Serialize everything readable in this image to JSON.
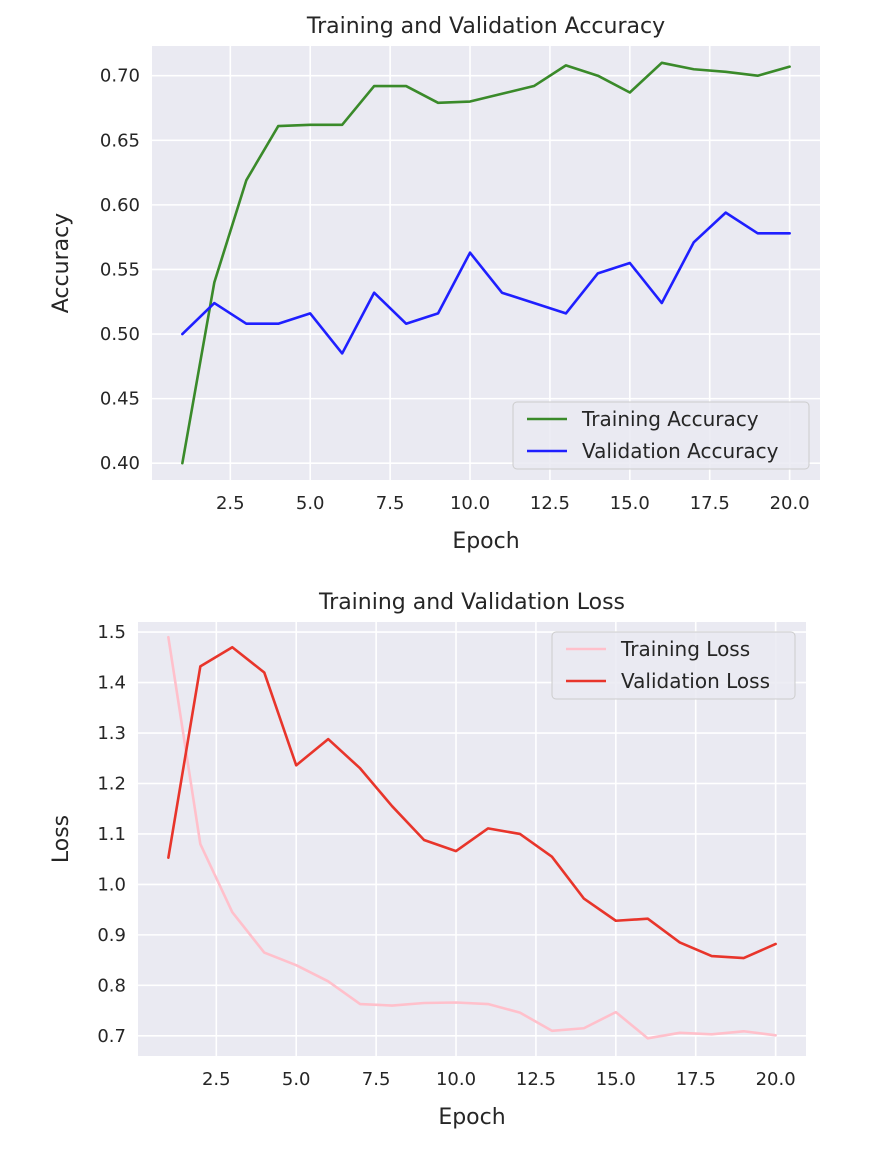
{
  "chart_data": [
    {
      "type": "line",
      "title": "Training and Validation Accuracy",
      "xlabel": "Epoch",
      "ylabel": "Accuracy",
      "xlim": [
        0.05,
        20.95
      ],
      "ylim": [
        0.387,
        0.723
      ],
      "xticks": [
        2.5,
        5.0,
        7.5,
        10.0,
        12.5,
        15.0,
        17.5,
        20.0
      ],
      "yticks": [
        0.4,
        0.45,
        0.5,
        0.55,
        0.6,
        0.65,
        0.7
      ],
      "xtick_labels": [
        "2.5",
        "5.0",
        "7.5",
        "10.0",
        "12.5",
        "15.0",
        "17.5",
        "20.0"
      ],
      "ytick_labels": [
        "0.40",
        "0.45",
        "0.50",
        "0.55",
        "0.60",
        "0.65",
        "0.70"
      ],
      "grid": true,
      "legend_position": "lower-right",
      "x": [
        1,
        2,
        3,
        4,
        5,
        6,
        7,
        8,
        9,
        10,
        11,
        12,
        13,
        14,
        15,
        16,
        17,
        18,
        19,
        20
      ],
      "series": [
        {
          "name": "Training Accuracy",
          "color": "#3a8a2a",
          "values": [
            0.4,
            0.54,
            0.619,
            0.661,
            0.662,
            0.662,
            0.692,
            0.692,
            0.679,
            0.68,
            0.686,
            0.692,
            0.708,
            0.7,
            0.687,
            0.71,
            0.705,
            0.703,
            0.7,
            0.707
          ]
        },
        {
          "name": "Validation Accuracy",
          "color": "#1f1fff",
          "values": [
            0.5,
            0.524,
            0.508,
            0.508,
            0.516,
            0.485,
            0.532,
            0.508,
            0.516,
            0.563,
            0.532,
            0.524,
            0.516,
            0.547,
            0.555,
            0.524,
            0.571,
            0.594,
            0.578,
            0.578
          ]
        }
      ]
    },
    {
      "type": "line",
      "title": "Training and Validation Loss",
      "xlabel": "Epoch",
      "ylabel": "Loss",
      "xlim": [
        0.05,
        20.95
      ],
      "ylim": [
        0.66,
        1.52
      ],
      "xticks": [
        2.5,
        5.0,
        7.5,
        10.0,
        12.5,
        15.0,
        17.5,
        20.0
      ],
      "yticks": [
        0.7,
        0.8,
        0.9,
        1.0,
        1.1,
        1.2,
        1.3,
        1.4,
        1.5
      ],
      "xtick_labels": [
        "2.5",
        "5.0",
        "7.5",
        "10.0",
        "12.5",
        "15.0",
        "17.5",
        "20.0"
      ],
      "ytick_labels": [
        "0.7",
        "0.8",
        "0.9",
        "1.0",
        "1.1",
        "1.2",
        "1.3",
        "1.4",
        "1.5"
      ],
      "grid": true,
      "legend_position": "upper-right",
      "x": [
        1,
        2,
        3,
        4,
        5,
        6,
        7,
        8,
        9,
        10,
        11,
        12,
        13,
        14,
        15,
        16,
        17,
        18,
        19,
        20
      ],
      "series": [
        {
          "name": "Training Loss",
          "color": "#ffc0cb",
          "values": [
            1.49,
            1.08,
            0.945,
            0.865,
            0.84,
            0.808,
            0.763,
            0.76,
            0.765,
            0.766,
            0.763,
            0.746,
            0.71,
            0.715,
            0.747,
            0.695,
            0.706,
            0.703,
            0.709,
            0.701
          ]
        },
        {
          "name": "Validation Loss",
          "color": "#e8352b",
          "values": [
            1.053,
            1.432,
            1.47,
            1.42,
            1.236,
            1.288,
            1.23,
            1.155,
            1.088,
            1.066,
            1.111,
            1.1,
            1.055,
            0.972,
            0.928,
            0.932,
            0.885,
            0.858,
            0.854,
            0.882
          ]
        }
      ]
    }
  ]
}
